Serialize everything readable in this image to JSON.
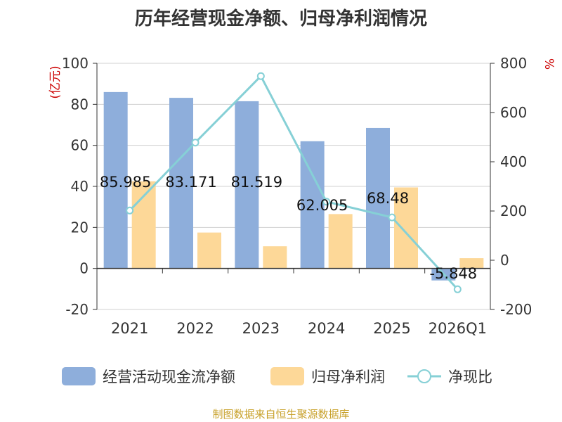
{
  "chart_data": {
    "type": "bar",
    "title": "历年经营现金净额、归母净利润情况",
    "categories": [
      "2021",
      "2022",
      "2023",
      "2024",
      "2025",
      "2026Q1"
    ],
    "y_left": {
      "label": "(亿元)",
      "range": [
        -20,
        100
      ],
      "ticks": [
        -20,
        0,
        20,
        40,
        60,
        80,
        100
      ]
    },
    "y_right": {
      "label": "%",
      "range": [
        -200,
        800
      ],
      "ticks": [
        -200,
        0,
        200,
        400,
        600,
        800
      ]
    },
    "series": [
      {
        "name": "经营活动现金流净额",
        "kind": "bar",
        "axis": "left",
        "color": "#8eaedb",
        "values": [
          85.985,
          83.171,
          81.519,
          62.005,
          68.48,
          -5.848
        ],
        "labels": [
          "85.985",
          "83.171",
          "81.519",
          "62.005",
          "68.48",
          "-5.848"
        ]
      },
      {
        "name": "归母净利润",
        "kind": "bar",
        "axis": "left",
        "color": "#fdd898",
        "values": [
          42.5,
          17.5,
          10.8,
          26.5,
          39.5,
          5.0
        ]
      },
      {
        "name": "净现比",
        "kind": "line",
        "axis": "right",
        "color": "#86d0d6",
        "values": [
          202,
          478,
          748,
          238,
          174,
          -118
        ]
      }
    ]
  },
  "source": "制图数据来自恒生聚源数据库"
}
